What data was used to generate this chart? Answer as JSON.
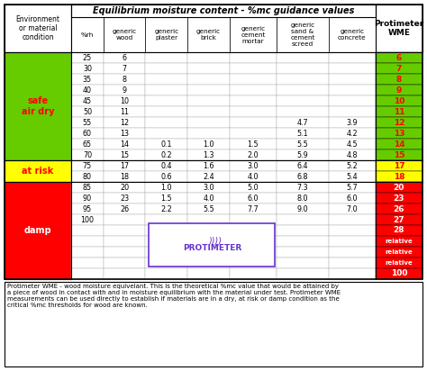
{
  "title": "Equilibrium moisture content - %mc guidance values",
  "col_headers": [
    "Environment\nor material\ncondition",
    "%rh",
    "generic\nwood",
    "generic\nplaster",
    "generic\nbrick",
    "generic\ncement\nmortar",
    "generic\nsand &\ncement\nscreed",
    "generic\nconcrete",
    "Protimeter\nWME"
  ],
  "rows": [
    {
      "rh": "25",
      "wood": "6",
      "plaster": "",
      "brick": "",
      "mortar": "",
      "screed": "",
      "concrete": "",
      "wme": "6"
    },
    {
      "rh": "30",
      "wood": "7",
      "plaster": "",
      "brick": "",
      "mortar": "",
      "screed": "",
      "concrete": "",
      "wme": "7"
    },
    {
      "rh": "35",
      "wood": "8",
      "plaster": "",
      "brick": "",
      "mortar": "",
      "screed": "",
      "concrete": "",
      "wme": "8"
    },
    {
      "rh": "40",
      "wood": "9",
      "plaster": "",
      "brick": "",
      "mortar": "",
      "screed": "",
      "concrete": "",
      "wme": "9"
    },
    {
      "rh": "45",
      "wood": "10",
      "plaster": "",
      "brick": "",
      "mortar": "",
      "screed": "",
      "concrete": "",
      "wme": "10"
    },
    {
      "rh": "50",
      "wood": "11",
      "plaster": "",
      "brick": "",
      "mortar": "",
      "screed": "",
      "concrete": "",
      "wme": "11"
    },
    {
      "rh": "55",
      "wood": "12",
      "plaster": "",
      "brick": "",
      "mortar": "",
      "screed": "4.7",
      "concrete": "3.9",
      "wme": "12"
    },
    {
      "rh": "60",
      "wood": "13",
      "plaster": "",
      "brick": "",
      "mortar": "",
      "screed": "5.1",
      "concrete": "4.2",
      "wme": "13"
    },
    {
      "rh": "65",
      "wood": "14",
      "plaster": "0.1",
      "brick": "1.0",
      "mortar": "1.5",
      "screed": "5.5",
      "concrete": "4.5",
      "wme": "14"
    },
    {
      "rh": "70",
      "wood": "15",
      "plaster": "0.2",
      "brick": "1.3",
      "mortar": "2.0",
      "screed": "5.9",
      "concrete": "4.8",
      "wme": "15"
    },
    {
      "rh": "75",
      "wood": "17",
      "plaster": "0.4",
      "brick": "1.6",
      "mortar": "3.0",
      "screed": "6.4",
      "concrete": "5.2",
      "wme": "17"
    },
    {
      "rh": "80",
      "wood": "18",
      "plaster": "0.6",
      "brick": "2.4",
      "mortar": "4.0",
      "screed": "6.8",
      "concrete": "5.4",
      "wme": "18"
    },
    {
      "rh": "85",
      "wood": "20",
      "plaster": "1.0",
      "brick": "3.0",
      "mortar": "5.0",
      "screed": "7.3",
      "concrete": "5.7",
      "wme": "20"
    },
    {
      "rh": "90",
      "wood": "23",
      "plaster": "1.5",
      "brick": "4.0",
      "mortar": "6.0",
      "screed": "8.0",
      "concrete": "6.0",
      "wme": "23"
    },
    {
      "rh": "95",
      "wood": "26",
      "plaster": "2.2",
      "brick": "5.5",
      "mortar": "7.7",
      "screed": "9.0",
      "concrete": "7.0",
      "wme": "26"
    },
    {
      "rh": "100",
      "wood": "",
      "plaster": "",
      "brick": "",
      "mortar": "",
      "screed": "",
      "concrete": "",
      "wme": "27"
    },
    {
      "rh": "",
      "wood": "",
      "plaster": "",
      "brick": "",
      "mortar": "",
      "screed": "",
      "concrete": "",
      "wme": "28"
    },
    {
      "rh": "",
      "wood": "",
      "plaster": "",
      "brick": "",
      "mortar": "",
      "screed": "",
      "concrete": "",
      "wme": "relative"
    },
    {
      "rh": "",
      "wood": "",
      "plaster": "",
      "brick": "",
      "mortar": "",
      "screed": "",
      "concrete": "",
      "wme": "relative"
    },
    {
      "rh": "",
      "wood": "",
      "plaster": "",
      "brick": "",
      "mortar": "",
      "screed": "",
      "concrete": "",
      "wme": "relative"
    },
    {
      "rh": "",
      "wood": "",
      "plaster": "",
      "brick": "",
      "mortar": "",
      "screed": "",
      "concrete": "",
      "wme": "100"
    }
  ],
  "safe_color": "#66cc00",
  "atrisk_color": "#ffff00",
  "damp_color": "#ff0000",
  "footer_text": "Protimeter WME - wood moisture equivelant. This is the theoretical %mc value that would be attained by\na piece of wood in contact with and in moisture equilibrium with the material under test. Protimeter WME\nmeasurements can be used directly to establish if materials are in a dry, at risk or damp condition as the\ncritical %mc thresholds for wood are known.",
  "bg_color": "#ffffff",
  "protimeter_color": "#6633cc",
  "safe_rows": [
    0,
    9
  ],
  "atrisk_rows": [
    10,
    11
  ],
  "damp_rows": [
    12,
    20
  ]
}
